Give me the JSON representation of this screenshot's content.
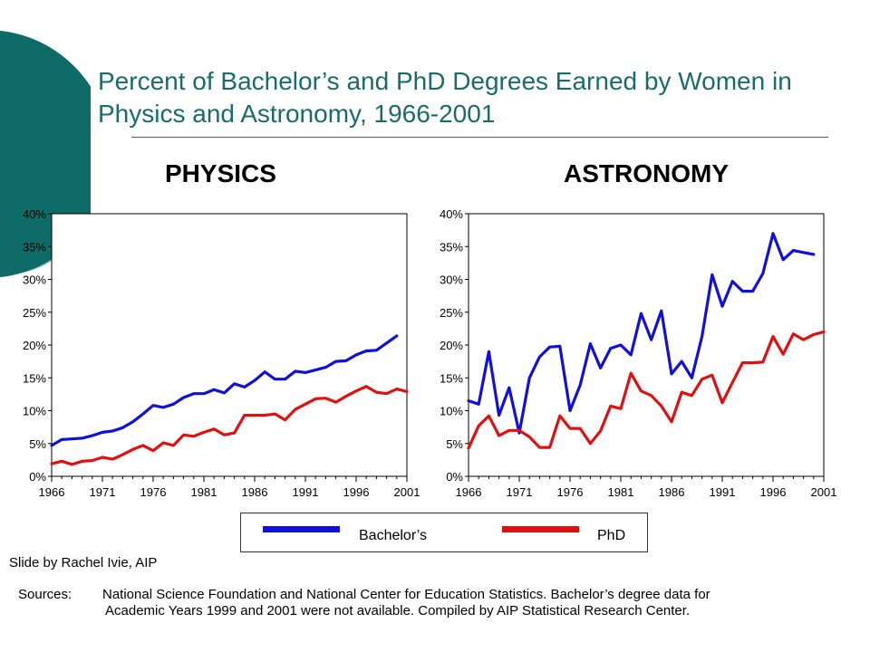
{
  "slide": {
    "title": "Percent of Bachelor’s and PhD Degrees Earned by Women in Physics and Astronomy, 1966-2001",
    "credit": "Slide by Rachel Ivie, AIP",
    "sources_prefix": "Sources:",
    "sources_text": "National Science Foundation and National Center for Education Statistics.  Bachelor’s degree data for Academic Years 1999 and 2001 were not available.  Compiled by AIP Statistical Research Center.",
    "colors": {
      "title": "#1a6b6b",
      "deco_dark": "#0f6b67",
      "deco_light": "#8fc9c9"
    }
  },
  "legend": {
    "bachelors_label": "Bachelor’s",
    "phd_label": "PhD",
    "bachelors_color": "#1010dd",
    "phd_color": "#e01010"
  },
  "chart_data": [
    {
      "type": "line",
      "title": "PHYSICS",
      "xlabel": "",
      "ylabel": "",
      "xlim": [
        1966,
        2001
      ],
      "ylim": [
        0,
        40
      ],
      "x_ticks": [
        "1966",
        "1971",
        "1976",
        "1981",
        "1986",
        "1991",
        "1996",
        "2001"
      ],
      "y_ticks": [
        "0%",
        "5%",
        "10%",
        "15%",
        "20%",
        "25%",
        "30%",
        "35%",
        "40%"
      ],
      "grid": false,
      "series": [
        {
          "name": "Bachelor’s",
          "color": "#1010dd",
          "x": [
            1966,
            1967,
            1968,
            1969,
            1970,
            1971,
            1972,
            1973,
            1974,
            1975,
            1976,
            1977,
            1978,
            1979,
            1980,
            1981,
            1982,
            1983,
            1984,
            1985,
            1986,
            1987,
            1988,
            1989,
            1990,
            1991,
            1992,
            1993,
            1994,
            1995,
            1996,
            1997,
            1998,
            2000
          ],
          "values": [
            4.7,
            5.6,
            5.7,
            5.8,
            6.2,
            6.7,
            6.9,
            7.4,
            8.3,
            9.5,
            10.8,
            10.5,
            11.0,
            12.0,
            12.6,
            12.6,
            13.2,
            12.7,
            14.1,
            13.6,
            14.6,
            15.9,
            14.8,
            14.8,
            16.0,
            15.8,
            16.2,
            16.6,
            17.5,
            17.6,
            18.5,
            19.1,
            19.2,
            21.4
          ]
        },
        {
          "name": "PhD",
          "color": "#e01010",
          "x": [
            1966,
            1967,
            1968,
            1969,
            1970,
            1971,
            1972,
            1973,
            1974,
            1975,
            1976,
            1977,
            1978,
            1979,
            1980,
            1981,
            1982,
            1983,
            1984,
            1985,
            1986,
            1987,
            1988,
            1989,
            1990,
            1991,
            1992,
            1993,
            1994,
            1995,
            1996,
            1997,
            1998,
            1999,
            2000,
            2001
          ],
          "values": [
            1.9,
            2.3,
            1.8,
            2.3,
            2.4,
            2.9,
            2.6,
            3.3,
            4.1,
            4.7,
            3.9,
            5.1,
            4.7,
            6.3,
            6.1,
            6.7,
            7.2,
            6.3,
            6.6,
            9.3,
            9.3,
            9.3,
            9.5,
            8.6,
            10.2,
            11.0,
            11.8,
            11.9,
            11.3,
            12.2,
            13.0,
            13.7,
            12.8,
            12.6,
            13.3,
            12.9
          ]
        }
      ]
    },
    {
      "type": "line",
      "title": "ASTRONOMY",
      "xlabel": "",
      "ylabel": "",
      "xlim": [
        1966,
        2001
      ],
      "ylim": [
        0,
        40
      ],
      "x_ticks": [
        "1966",
        "1971",
        "1976",
        "1981",
        "1986",
        "1991",
        "1996",
        "2001"
      ],
      "y_ticks": [
        "0%",
        "5%",
        "10%",
        "15%",
        "20%",
        "25%",
        "30%",
        "35%",
        "40%"
      ],
      "grid": false,
      "series": [
        {
          "name": "Bachelor’s",
          "color": "#1010dd",
          "x": [
            1966,
            1967,
            1968,
            1969,
            1970,
            1971,
            1972,
            1973,
            1974,
            1975,
            1976,
            1977,
            1978,
            1979,
            1980,
            1981,
            1982,
            1983,
            1984,
            1985,
            1986,
            1987,
            1988,
            1989,
            1990,
            1991,
            1992,
            1993,
            1994,
            1995,
            1996,
            1997,
            1998,
            2000
          ],
          "values": [
            11.5,
            11.0,
            19.0,
            9.3,
            13.5,
            6.6,
            15.0,
            18.2,
            19.7,
            19.8,
            10.0,
            13.9,
            20.2,
            16.5,
            19.5,
            20.0,
            18.5,
            24.8,
            20.8,
            25.2,
            15.6,
            17.5,
            15.0,
            21.3,
            30.7,
            25.9,
            29.7,
            28.2,
            28.2,
            30.9,
            37.0,
            33.0,
            34.4,
            33.8
          ]
        },
        {
          "name": "PhD",
          "color": "#e01010",
          "x": [
            1966,
            1967,
            1968,
            1969,
            1970,
            1971,
            1972,
            1973,
            1974,
            1975,
            1976,
            1977,
            1978,
            1979,
            1980,
            1981,
            1982,
            1983,
            1984,
            1985,
            1986,
            1987,
            1988,
            1989,
            1990,
            1991,
            1992,
            1993,
            1994,
            1995,
            1996,
            1997,
            1998,
            1999,
            2000,
            2001
          ],
          "values": [
            4.3,
            7.7,
            9.2,
            6.2,
            7.0,
            7.0,
            6.0,
            4.4,
            4.4,
            9.2,
            7.3,
            7.3,
            5.0,
            6.9,
            10.7,
            10.3,
            15.7,
            13.0,
            12.3,
            10.7,
            8.3,
            12.8,
            12.3,
            14.8,
            15.4,
            11.2,
            14.3,
            17.3,
            17.3,
            17.4,
            21.3,
            18.6,
            21.7,
            20.8,
            21.6,
            22.0
          ]
        }
      ]
    }
  ]
}
